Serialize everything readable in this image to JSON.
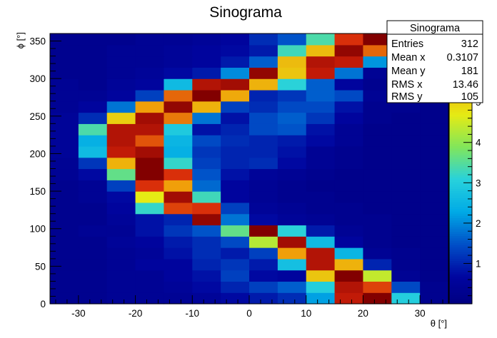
{
  "chart_data": {
    "type": "heatmap",
    "title": "Sinograma",
    "xlabel": "θ [°]",
    "ylabel": "ϕ [°]",
    "xlim": [
      -35,
      35
    ],
    "ylim": [
      0,
      360
    ],
    "x_ticks": [
      -30,
      -20,
      -10,
      0,
      10,
      20,
      30
    ],
    "y_ticks": [
      0,
      50,
      100,
      150,
      200,
      250,
      300,
      350
    ],
    "z_ticks": [
      1,
      2,
      3,
      4,
      5,
      6
    ],
    "zlim": [
      0,
      6.7
    ],
    "x_bin_edges": [
      -35,
      -30,
      -25,
      -20,
      -15,
      -10,
      -5,
      0,
      5,
      10,
      15,
      20,
      25,
      30,
      35
    ],
    "y_bin_edges": [
      0,
      15,
      30,
      45,
      60,
      75,
      90,
      105,
      120,
      135,
      150,
      165,
      180,
      195,
      210,
      225,
      240,
      255,
      270,
      285,
      300,
      315,
      330,
      345,
      360
    ],
    "z_rows_bottom_to_top": [
      [
        0.3,
        0.3,
        0.4,
        0.4,
        0.4,
        0.5,
        0.7,
        0.9,
        1.1,
        2.2,
        6.3,
        6.7,
        3.0,
        0.3
      ],
      [
        0.3,
        0.3,
        0.4,
        0.4,
        0.5,
        0.7,
        1.0,
        1.3,
        1.6,
        3.0,
        6.4,
        6.0,
        1.4,
        0.3
      ],
      [
        0.3,
        0.3,
        0.4,
        0.4,
        0.6,
        0.8,
        1.3,
        0.7,
        0.6,
        5.1,
        6.7,
        4.4,
        0.4,
        0.2
      ],
      [
        0.3,
        0.3,
        0.4,
        0.6,
        0.6,
        1.0,
        1.2,
        0.9,
        2.7,
        6.4,
        5.3,
        1.0,
        0.3,
        0.2
      ],
      [
        0.3,
        0.3,
        0.4,
        0.5,
        0.8,
        1.1,
        0.9,
        1.3,
        5.5,
        6.4,
        2.5,
        0.4,
        0.3,
        0.2
      ],
      [
        0.3,
        0.3,
        0.5,
        0.6,
        0.9,
        1.1,
        1.4,
        4.3,
        6.5,
        2.6,
        0.6,
        0.3,
        0.2,
        0.2
      ],
      [
        0.3,
        0.4,
        0.4,
        0.8,
        1.2,
        1.5,
        3.6,
        6.8,
        3.1,
        0.9,
        0.4,
        0.3,
        0.2,
        0.2
      ],
      [
        0.3,
        0.3,
        0.5,
        0.8,
        1.0,
        6.6,
        1.8,
        0.7,
        0.5,
        0.4,
        0.3,
        0.3,
        0.2,
        0.2
      ],
      [
        0.3,
        0.3,
        0.6,
        3.2,
        6.0,
        6.1,
        1.3,
        0.5,
        0.4,
        0.3,
        0.3,
        0.2,
        0.2,
        0.2
      ],
      [
        0.3,
        0.4,
        0.7,
        4.7,
        6.5,
        3.3,
        0.6,
        0.4,
        0.3,
        0.3,
        0.2,
        0.2,
        0.2,
        0.2
      ],
      [
        0.3,
        0.4,
        1.3,
        6.1,
        5.5,
        1.7,
        0.6,
        0.4,
        0.3,
        0.2,
        0.2,
        0.2,
        0.2,
        0.2
      ],
      [
        0.4,
        0.7,
        3.6,
        6.7,
        6.1,
        1.5,
        0.8,
        0.5,
        0.4,
        0.3,
        0.2,
        0.2,
        0.2,
        0.2
      ],
      [
        0.4,
        1.2,
        5.3,
        6.9,
        3.2,
        1.3,
        1.0,
        1.1,
        0.7,
        0.4,
        0.3,
        0.2,
        0.2,
        0.2
      ],
      [
        0.5,
        2.6,
        6.3,
        6.5,
        2.4,
        1.2,
        1.0,
        1.0,
        0.8,
        0.4,
        0.3,
        0.2,
        0.2,
        0.2
      ],
      [
        0.5,
        2.4,
        6.4,
        5.9,
        2.5,
        1.4,
        1.1,
        1.0,
        0.9,
        0.7,
        0.4,
        0.2,
        0.2,
        0.2
      ],
      [
        0.5,
        3.4,
        6.4,
        6.4,
        2.9,
        0.8,
        1.0,
        1.4,
        1.5,
        0.8,
        0.4,
        0.2,
        0.2,
        0.2
      ],
      [
        0.5,
        1.1,
        5.0,
        6.5,
        5.7,
        1.8,
        0.8,
        1.4,
        1.6,
        1.2,
        0.6,
        0.3,
        0.2,
        0.2
      ],
      [
        0.4,
        0.6,
        1.8,
        5.5,
        6.6,
        5.3,
        1.3,
        1.1,
        1.4,
        1.4,
        0.8,
        0.3,
        0.3,
        0.2
      ],
      [
        0.4,
        0.4,
        0.6,
        1.3,
        5.8,
        6.9,
        5.4,
        1.0,
        1.2,
        1.6,
        1.4,
        0.4,
        0.3,
        0.2
      ],
      [
        0.4,
        0.3,
        0.5,
        0.6,
        2.6,
        6.4,
        6.5,
        5.3,
        3.1,
        1.6,
        0.6,
        0.3,
        0.2,
        0.2
      ],
      [
        0.3,
        0.3,
        0.4,
        0.5,
        0.7,
        0.9,
        2.0,
        6.6,
        5.1,
        6.3,
        1.8,
        0.4,
        0.2,
        0.2
      ],
      [
        0.3,
        0.3,
        0.4,
        0.4,
        0.5,
        0.6,
        0.9,
        1.6,
        5.2,
        6.4,
        6.3,
        2.1,
        0.6,
        0.2
      ],
      [
        0.3,
        0.3,
        0.4,
        0.4,
        0.5,
        0.6,
        0.7,
        0.9,
        3.3,
        5.2,
        6.6,
        5.8,
        0.8,
        0.2
      ],
      [
        0.3,
        0.3,
        0.3,
        0.4,
        0.4,
        0.5,
        0.6,
        1.1,
        1.5,
        3.4,
        6.1,
        7.0,
        1.6,
        0.3
      ]
    ],
    "stats": {
      "title": "Sinograma",
      "rows": [
        {
          "label": "Entries",
          "value": "312"
        },
        {
          "label": "Mean x",
          "value": "0.3107"
        },
        {
          "label": "Mean y",
          "value": "181"
        },
        {
          "label": "RMS x",
          "value": "13.46"
        },
        {
          "label": "RMS y",
          "value": "105"
        }
      ]
    }
  }
}
